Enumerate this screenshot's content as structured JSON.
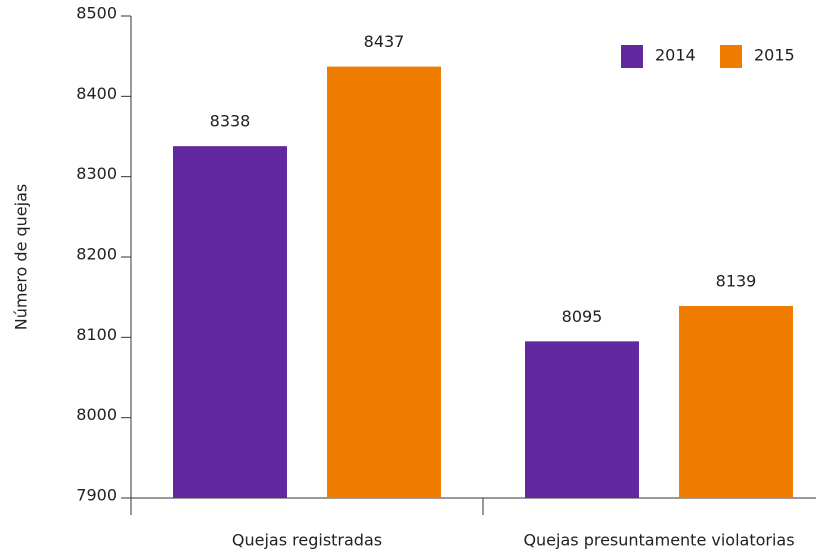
{
  "chart_data": {
    "type": "bar",
    "y_label": "Número de quejas",
    "categories": [
      "Quejas registradas",
      "Quejas presuntamente violatorias"
    ],
    "series": [
      {
        "name": "2014",
        "color": "#6228a0",
        "values": [
          8338,
          8095
        ]
      },
      {
        "name": "2015",
        "color": "#ef7b00",
        "values": [
          8437,
          8139
        ]
      }
    ],
    "ylim": [
      7900,
      8500
    ],
    "yticks": [
      7900,
      8000,
      8100,
      8200,
      8300,
      8400,
      8500
    ],
    "legend": "top-right"
  }
}
